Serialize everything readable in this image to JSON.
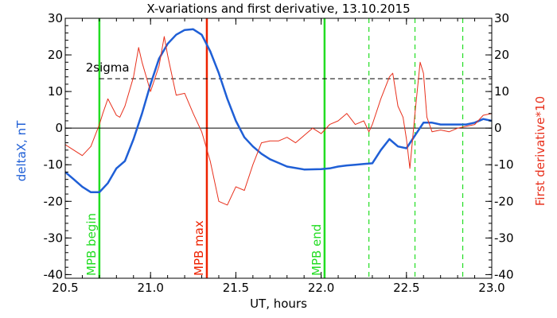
{
  "chart_data": {
    "type": "line",
    "title": "X-variations and first derivative, 13.10.2015",
    "xlabel": "UT, hours",
    "ylabel_left": "deltaX, nT",
    "ylabel_right": "First derivative*10",
    "xlim": [
      20.5,
      23.0
    ],
    "ylim": [
      -41,
      30
    ],
    "x_ticks": [
      "20.5",
      "21.0",
      "21.5",
      "22.0",
      "22.5",
      "23.0"
    ],
    "y_ticks": [
      "30",
      "20",
      "10",
      "0",
      "-10",
      "-20",
      "-30",
      "-40"
    ],
    "colors": {
      "deltaX": "#1f5fd6",
      "derivative": "#e8301c",
      "mpb_bounds": "#22dd22",
      "mpb_max": "#ee2200",
      "sigma": "#000000"
    },
    "series": [
      {
        "name": "deltaX, nT",
        "color": "#1f5fd6",
        "x": [
          20.5,
          20.55,
          20.6,
          20.65,
          20.7,
          20.75,
          20.8,
          20.85,
          20.9,
          20.95,
          21.0,
          21.05,
          21.1,
          21.15,
          21.2,
          21.25,
          21.3,
          21.35,
          21.4,
          21.45,
          21.5,
          21.55,
          21.6,
          21.65,
          21.7,
          21.75,
          21.8,
          21.9,
          22.0,
          22.05,
          22.1,
          22.15,
          22.2,
          22.25,
          22.3,
          22.35,
          22.4,
          22.45,
          22.5,
          22.55,
          22.6,
          22.65,
          22.7,
          22.75,
          22.8,
          22.85,
          22.9,
          22.95,
          23.0
        ],
        "values": [
          -12,
          -14,
          -16,
          -17.5,
          -17.5,
          -15,
          -11,
          -9,
          -3,
          4,
          12,
          19,
          23,
          25.5,
          26.8,
          27,
          25.5,
          21,
          15,
          8,
          2,
          -2.5,
          -5,
          -7,
          -8.5,
          -9.5,
          -10.5,
          -11.3,
          -11.2,
          -11,
          -10.5,
          -10.2,
          -10,
          -9.8,
          -9.6,
          -6,
          -3,
          -5,
          -5.5,
          -2,
          1.5,
          1.5,
          1,
          1,
          1,
          1,
          1.5,
          2.5,
          2
        ]
      },
      {
        "name": "First derivative*10",
        "color": "#e8301c",
        "x": [
          20.5,
          20.55,
          20.6,
          20.65,
          20.7,
          20.72,
          20.75,
          20.8,
          20.82,
          20.85,
          20.9,
          20.93,
          20.95,
          21.0,
          21.05,
          21.08,
          21.1,
          21.15,
          21.2,
          21.25,
          21.3,
          21.35,
          21.4,
          21.45,
          21.5,
          21.55,
          21.6,
          21.65,
          21.7,
          21.75,
          21.8,
          21.85,
          21.9,
          21.95,
          22.0,
          22.05,
          22.1,
          22.15,
          22.2,
          22.25,
          22.28,
          22.3,
          22.35,
          22.4,
          22.42,
          22.45,
          22.48,
          22.5,
          22.52,
          22.55,
          22.58,
          22.6,
          22.62,
          22.65,
          22.7,
          22.75,
          22.8,
          22.85,
          22.9,
          22.95,
          23.0
        ],
        "values": [
          -4.5,
          -6,
          -7.5,
          -5,
          1,
          4,
          8,
          3.5,
          3,
          6,
          14,
          22,
          18,
          10,
          17,
          25,
          20,
          9,
          9.5,
          4,
          -1,
          -9,
          -20,
          -21,
          -16,
          -17,
          -10,
          -4,
          -3.5,
          -3.5,
          -2.5,
          -4,
          -2,
          0,
          -1.5,
          1,
          2,
          4,
          1,
          2,
          -1,
          1,
          8,
          14,
          15,
          6,
          3,
          -3,
          -11,
          4,
          18,
          15,
          3,
          -1,
          -0.5,
          -1,
          0,
          0.5,
          1,
          3.5,
          4
        ]
      }
    ],
    "threshold": {
      "label": "2sigma",
      "value": 13.5
    },
    "vertical_markers": [
      {
        "label": "MPB begin",
        "x": 20.7,
        "style": "solid",
        "color": "#22dd22"
      },
      {
        "label": "MPB max",
        "x": 21.33,
        "style": "solid",
        "color": "#ee2200"
      },
      {
        "label": "MPB end",
        "x": 22.02,
        "style": "solid",
        "color": "#22dd22"
      },
      {
        "label": "",
        "x": 22.28,
        "style": "dashed",
        "color": "#22dd22"
      },
      {
        "label": "",
        "x": 22.55,
        "style": "dashed",
        "color": "#22dd22"
      },
      {
        "label": "",
        "x": 22.83,
        "style": "dashed",
        "color": "#22dd22"
      }
    ],
    "grid": false,
    "legend": "none"
  }
}
